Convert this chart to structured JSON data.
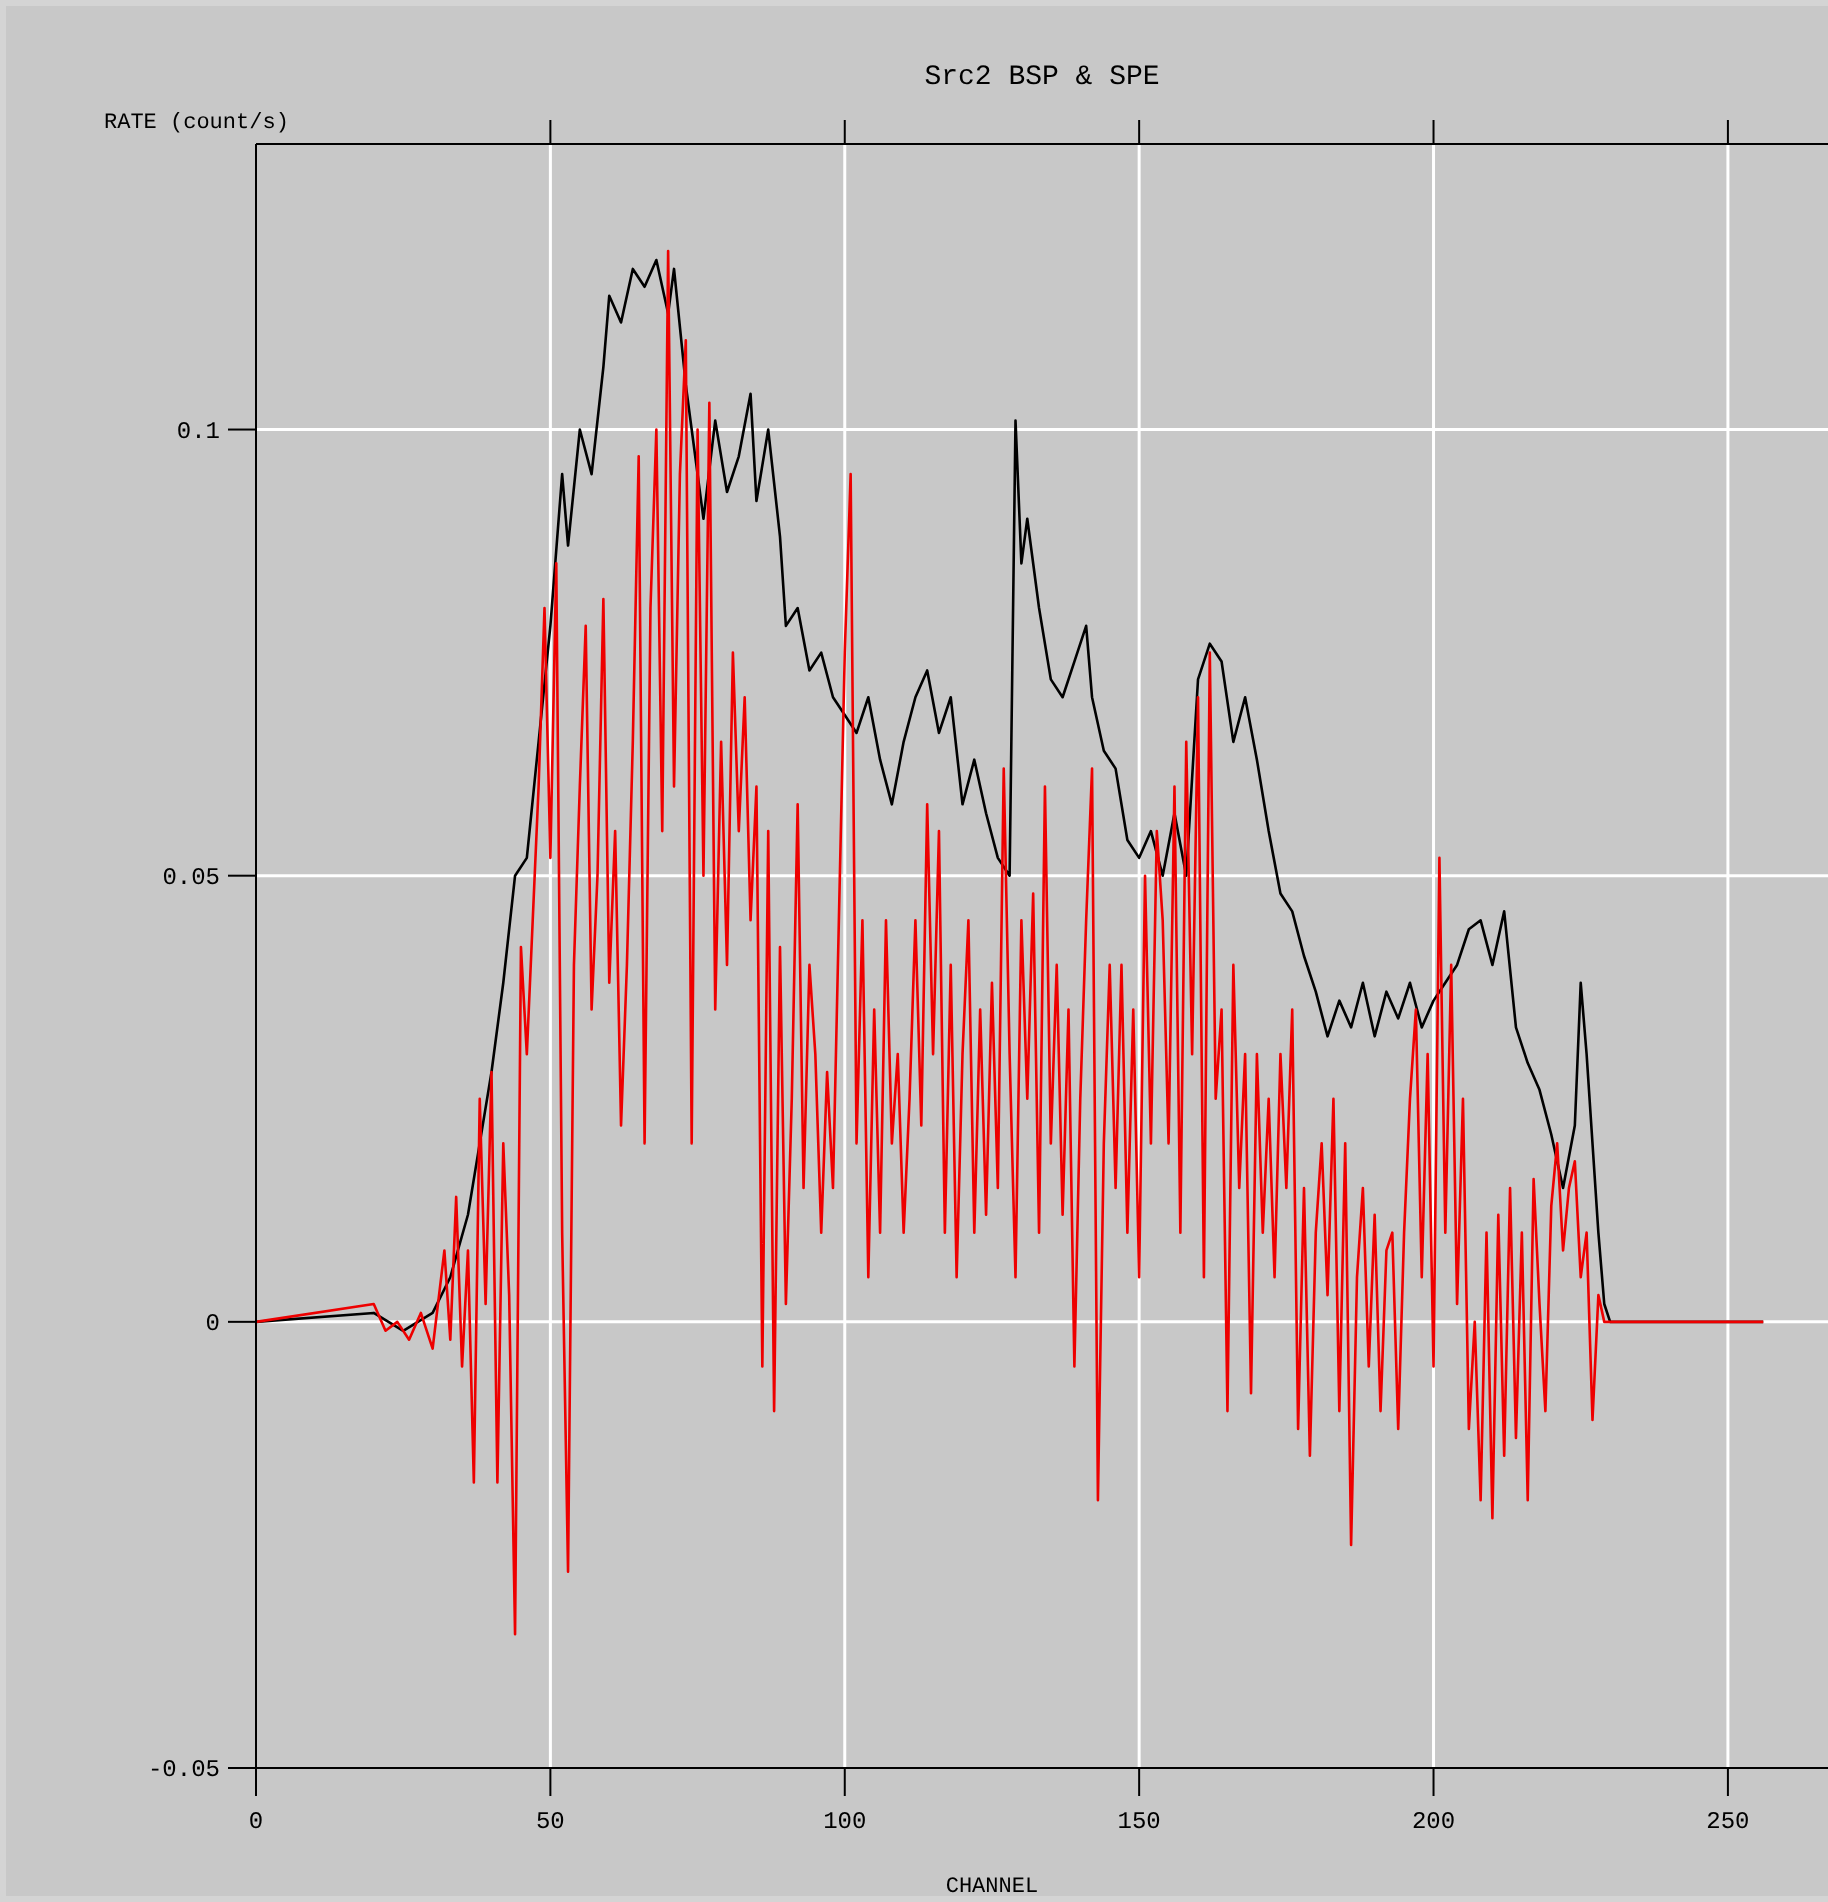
{
  "chart_data": {
    "type": "line",
    "title": "Src2 BSP & SPE",
    "xlabel": "CHANNEL",
    "ylabel": "RATE (count/s)",
    "xlim": [
      0,
      267
    ],
    "ylim": [
      -0.05,
      0.132
    ],
    "xticks": [
      0,
      50,
      100,
      150,
      200,
      250
    ],
    "yticks": [
      -0.05,
      0,
      0.05,
      0.1
    ],
    "grid": true,
    "series": [
      {
        "color": "#000000",
        "x": [
          0,
          20,
          25,
          30,
          33,
          36,
          38,
          40,
          42,
          44,
          46,
          48,
          50,
          52,
          53,
          55,
          57,
          59,
          60,
          62,
          64,
          66,
          68,
          70,
          71,
          73,
          74,
          76,
          78,
          80,
          82,
          84,
          85,
          87,
          89,
          90,
          92,
          94,
          96,
          98,
          100,
          102,
          104,
          106,
          108,
          110,
          112,
          114,
          116,
          118,
          120,
          122,
          124,
          126,
          128,
          129,
          130,
          131,
          133,
          135,
          137,
          139,
          141,
          142,
          144,
          146,
          148,
          150,
          152,
          154,
          156,
          158,
          160,
          162,
          164,
          166,
          168,
          170,
          172,
          174,
          176,
          178,
          180,
          182,
          184,
          186,
          188,
          190,
          192,
          194,
          196,
          198,
          200,
          202,
          204,
          206,
          208,
          210,
          212,
          214,
          216,
          218,
          220,
          222,
          224,
          225,
          226,
          228,
          229,
          230,
          256
        ],
        "values": [
          0,
          0.001,
          -0.001,
          0.001,
          0.005,
          0.012,
          0.02,
          0.028,
          0.038,
          0.05,
          0.052,
          0.065,
          0.078,
          0.095,
          0.087,
          0.1,
          0.095,
          0.107,
          0.115,
          0.112,
          0.118,
          0.116,
          0.119,
          0.113,
          0.118,
          0.105,
          0.1,
          0.09,
          0.101,
          0.093,
          0.097,
          0.104,
          0.092,
          0.1,
          0.088,
          0.078,
          0.08,
          0.073,
          0.075,
          0.07,
          0.068,
          0.066,
          0.07,
          0.063,
          0.058,
          0.065,
          0.07,
          0.073,
          0.066,
          0.07,
          0.058,
          0.063,
          0.057,
          0.052,
          0.05,
          0.101,
          0.085,
          0.09,
          0.08,
          0.072,
          0.07,
          0.074,
          0.078,
          0.07,
          0.064,
          0.062,
          0.054,
          0.052,
          0.055,
          0.05,
          0.057,
          0.05,
          0.072,
          0.076,
          0.074,
          0.065,
          0.07,
          0.063,
          0.055,
          0.048,
          0.046,
          0.041,
          0.037,
          0.032,
          0.036,
          0.033,
          0.038,
          0.032,
          0.037,
          0.034,
          0.038,
          0.033,
          0.036,
          0.038,
          0.04,
          0.044,
          0.045,
          0.04,
          0.046,
          0.033,
          0.029,
          0.026,
          0.021,
          0.015,
          0.022,
          0.038,
          0.03,
          0.01,
          0.002,
          0,
          0
        ]
      },
      {
        "color": "#ee0000",
        "x": [
          0,
          20,
          22,
          24,
          26,
          28,
          30,
          32,
          33,
          34,
          35,
          36,
          37,
          38,
          39,
          40,
          41,
          42,
          43,
          44,
          45,
          46,
          47,
          48,
          49,
          50,
          51,
          52,
          53,
          54,
          55,
          56,
          57,
          58,
          59,
          60,
          61,
          62,
          63,
          64,
          65,
          66,
          67,
          68,
          69,
          70,
          71,
          72,
          73,
          74,
          75,
          76,
          77,
          78,
          79,
          80,
          81,
          82,
          83,
          84,
          85,
          86,
          87,
          88,
          89,
          90,
          91,
          92,
          93,
          94,
          95,
          96,
          97,
          98,
          99,
          100,
          101,
          102,
          103,
          104,
          105,
          106,
          107,
          108,
          109,
          110,
          111,
          112,
          113,
          114,
          115,
          116,
          117,
          118,
          119,
          120,
          121,
          122,
          123,
          124,
          125,
          126,
          127,
          128,
          129,
          130,
          131,
          132,
          133,
          134,
          135,
          136,
          137,
          138,
          139,
          140,
          141,
          142,
          143,
          144,
          145,
          146,
          147,
          148,
          149,
          150,
          151,
          152,
          153,
          154,
          155,
          156,
          157,
          158,
          159,
          160,
          161,
          162,
          163,
          164,
          165,
          166,
          167,
          168,
          169,
          170,
          171,
          172,
          173,
          174,
          175,
          176,
          177,
          178,
          179,
          180,
          181,
          182,
          183,
          184,
          185,
          186,
          187,
          188,
          189,
          190,
          191,
          192,
          193,
          194,
          195,
          196,
          197,
          198,
          199,
          200,
          201,
          202,
          203,
          204,
          205,
          206,
          207,
          208,
          209,
          210,
          211,
          212,
          213,
          214,
          215,
          216,
          217,
          218,
          219,
          220,
          221,
          222,
          223,
          224,
          225,
          226,
          227,
          228,
          229,
          230,
          256
        ],
        "values": [
          0,
          0.002,
          -0.001,
          0,
          -0.002,
          0.001,
          -0.003,
          0.008,
          -0.002,
          0.014,
          -0.005,
          0.008,
          -0.018,
          0.025,
          0.002,
          0.028,
          -0.018,
          0.02,
          0.003,
          -0.035,
          0.042,
          0.03,
          0.045,
          0.06,
          0.08,
          0.052,
          0.085,
          0.01,
          -0.028,
          0.04,
          0.06,
          0.078,
          0.035,
          0.05,
          0.081,
          0.038,
          0.055,
          0.022,
          0.04,
          0.065,
          0.097,
          0.02,
          0.08,
          0.1,
          0.055,
          0.12,
          0.06,
          0.095,
          0.11,
          0.02,
          0.1,
          0.05,
          0.103,
          0.035,
          0.065,
          0.04,
          0.075,
          0.055,
          0.07,
          0.045,
          0.06,
          -0.005,
          0.055,
          -0.01,
          0.042,
          0.002,
          0.025,
          0.058,
          0.015,
          0.04,
          0.03,
          0.01,
          0.028,
          0.015,
          0.045,
          0.075,
          0.095,
          0.02,
          0.045,
          0.005,
          0.035,
          0.01,
          0.045,
          0.02,
          0.03,
          0.01,
          0.025,
          0.045,
          0.022,
          0.058,
          0.03,
          0.055,
          0.01,
          0.04,
          0.005,
          0.03,
          0.045,
          0.01,
          0.035,
          0.012,
          0.038,
          0.015,
          0.062,
          0.03,
          0.005,
          0.045,
          0.025,
          0.048,
          0.01,
          0.06,
          0.02,
          0.04,
          0.012,
          0.035,
          -0.005,
          0.025,
          0.045,
          0.062,
          -0.02,
          0.02,
          0.04,
          0.015,
          0.04,
          0.01,
          0.035,
          0.005,
          0.05,
          0.02,
          0.055,
          0.045,
          0.02,
          0.06,
          0.01,
          0.065,
          0.03,
          0.07,
          0.005,
          0.075,
          0.025,
          0.035,
          -0.01,
          0.04,
          0.015,
          0.03,
          -0.008,
          0.03,
          0.01,
          0.025,
          0.005,
          0.03,
          0.015,
          0.035,
          -0.012,
          0.015,
          -0.015,
          0.01,
          0.02,
          0.003,
          0.025,
          -0.01,
          0.02,
          -0.025,
          0.005,
          0.015,
          -0.005,
          0.012,
          -0.01,
          0.008,
          0.01,
          -0.012,
          0.01,
          0.025,
          0.035,
          0.005,
          0.03,
          -0.005,
          0.052,
          0.01,
          0.04,
          0.002,
          0.025,
          -0.012,
          0,
          -0.02,
          0.01,
          -0.022,
          0.012,
          -0.015,
          0.015,
          -0.013,
          0.01,
          -0.02,
          0.016,
          0.002,
          -0.01,
          0.013,
          0.02,
          0.008,
          0.015,
          0.018,
          0.005,
          0.01,
          -0.011,
          0.003,
          0,
          0,
          0
        ]
      }
    ]
  }
}
